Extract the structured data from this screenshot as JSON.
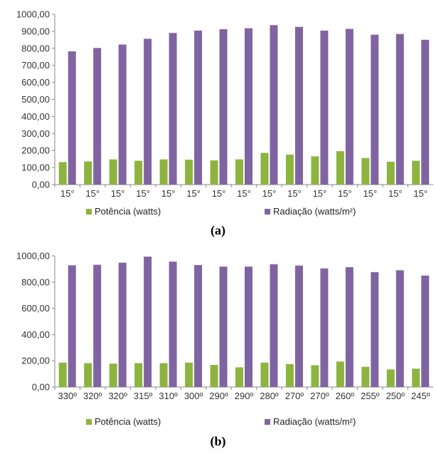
{
  "chart_data": [
    {
      "type": "bar",
      "caption": "(a)",
      "categories": [
        "15°",
        "15°",
        "15°",
        "15°",
        "15°",
        "15°",
        "15°",
        "15°",
        "15°",
        "15°",
        "15°",
        "15°",
        "15°",
        "15°",
        "15°"
      ],
      "series": [
        {
          "name": "Potência (watts)",
          "color": "#8db43e",
          "values": [
            132,
            136,
            148,
            140,
            148,
            146,
            142,
            148,
            186,
            176,
            166,
            196,
            156,
            134,
            140
          ]
        },
        {
          "name": "Radiação (watts/m²)",
          "color": "#8064a2",
          "values": [
            782,
            802,
            822,
            856,
            890,
            904,
            912,
            918,
            936,
            926,
            904,
            914,
            880,
            884,
            850
          ]
        }
      ],
      "ylim": [
        0,
        1000
      ],
      "yticks": [
        "0,00",
        "100,00",
        "200,00",
        "300,00",
        "400,00",
        "500,00",
        "600,00",
        "700,00",
        "800,00",
        "900,00",
        "1000,00"
      ],
      "legend": "bottom",
      "grid": false
    },
    {
      "type": "bar",
      "caption": "(b)",
      "categories": [
        "330º",
        "320º",
        "320º",
        "315º",
        "310º",
        "300º",
        "290º",
        "290º",
        "280º",
        "270º",
        "270º",
        "260º",
        "255º",
        "250º",
        "245º"
      ],
      "series": [
        {
          "name": "Potência (watts)",
          "color": "#8db43e",
          "values": [
            186,
            182,
            178,
            182,
            182,
            186,
            168,
            150,
            186,
            174,
            166,
            194,
            154,
            134,
            140
          ]
        },
        {
          "name": "Radiação (watts/m²)",
          "color": "#8064a2",
          "values": [
            928,
            932,
            948,
            994,
            956,
            930,
            918,
            918,
            936,
            926,
            904,
            914,
            876,
            890,
            850
          ]
        }
      ],
      "ylim": [
        0,
        1000
      ],
      "yticks": [
        "0,00",
        "200,00",
        "400,00",
        "600,00",
        "800,00",
        "1000,00"
      ],
      "legend": "bottom",
      "grid": false
    }
  ]
}
